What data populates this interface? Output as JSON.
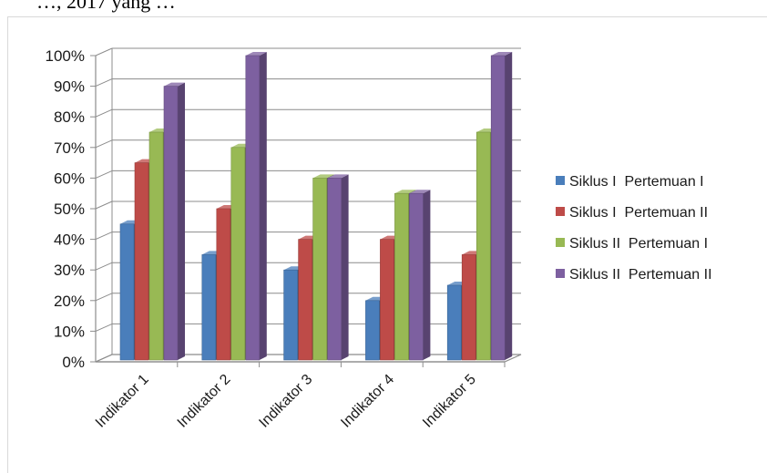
{
  "caption_fragment": "…, 2017 yang …",
  "colors": {
    "Siklus I  Pertemuan I": "#4a7ebb",
    "Siklus I  Pertemuan II": "#be4b48",
    "Siklus II  Pertemuan I": "#98b954",
    "Siklus II  Pertemuan II": "#7d60a0"
  },
  "chart_data": {
    "type": "bar",
    "style": "3d-clustered-column",
    "categories": [
      "Indikator 1",
      "Indikator 2",
      "Indikator 3",
      "Indikator 4",
      "Indikator 5"
    ],
    "series": [
      {
        "name": "Siklus I  Pertemuan I",
        "values": [
          45,
          35,
          30,
          20,
          25
        ]
      },
      {
        "name": "Siklus I  Pertemuan II",
        "values": [
          65,
          50,
          40,
          40,
          35
        ]
      },
      {
        "name": "Siklus II  Pertemuan I",
        "values": [
          75,
          70,
          60,
          55,
          75
        ]
      },
      {
        "name": "Siklus II  Pertemuan II",
        "values": [
          90,
          100,
          60,
          55,
          100
        ]
      }
    ],
    "yticks": [
      "0%",
      "10%",
      "20%",
      "30%",
      "40%",
      "50%",
      "60%",
      "70%",
      "80%",
      "90%",
      "100%"
    ],
    "ylim": [
      0,
      100
    ],
    "grid": true,
    "legend": "right"
  }
}
